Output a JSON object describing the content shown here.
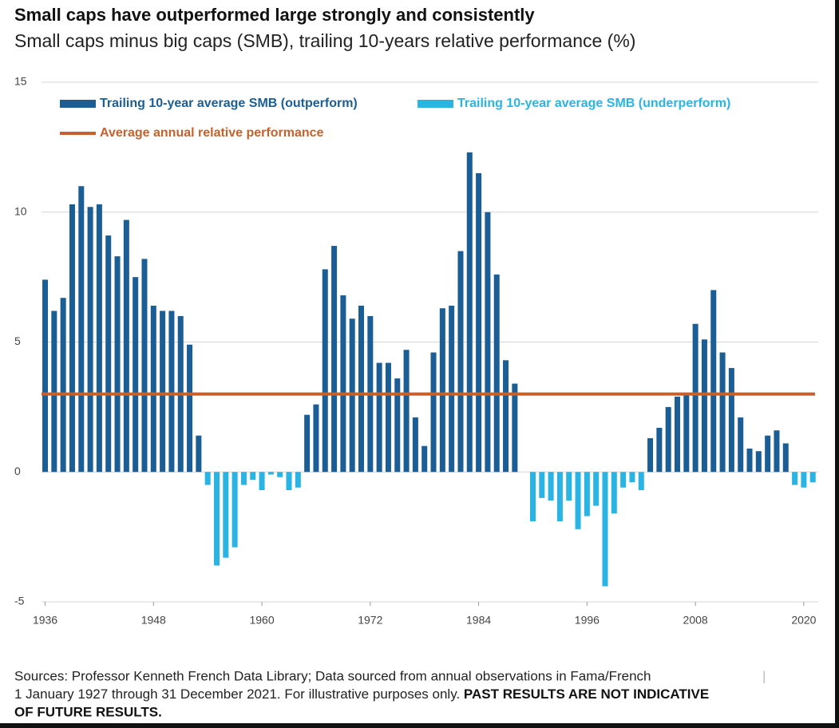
{
  "chart_data": {
    "type": "bar",
    "title": "Small caps have outperformed large strongly and consistently",
    "subtitle": "Small caps minus big caps (SMB), trailing 10-years relative performance (%)",
    "x": [
      1936,
      1937,
      1938,
      1939,
      1940,
      1941,
      1942,
      1943,
      1944,
      1945,
      1946,
      1947,
      1948,
      1949,
      1950,
      1951,
      1952,
      1953,
      1954,
      1955,
      1956,
      1957,
      1958,
      1959,
      1960,
      1961,
      1962,
      1963,
      1964,
      1965,
      1966,
      1967,
      1968,
      1969,
      1970,
      1971,
      1972,
      1973,
      1974,
      1975,
      1976,
      1977,
      1978,
      1979,
      1980,
      1981,
      1982,
      1983,
      1984,
      1985,
      1986,
      1987,
      1988,
      1989,
      1990,
      1991,
      1992,
      1993,
      1994,
      1995,
      1996,
      1997,
      1998,
      1999,
      2000,
      2001,
      2002,
      2003,
      2004,
      2005,
      2006,
      2007,
      2008,
      2009,
      2010,
      2011,
      2012,
      2013,
      2014,
      2015,
      2016,
      2017,
      2018,
      2019,
      2020,
      2021
    ],
    "series": [
      {
        "name": "Trailing 10-year average SMB (outperform)",
        "color": "#1b5e96",
        "values": [
          7.4,
          6.2,
          6.7,
          10.3,
          11.0,
          10.2,
          10.3,
          9.1,
          8.3,
          9.7,
          7.5,
          8.2,
          6.4,
          6.2,
          6.2,
          6.0,
          4.9,
          1.4,
          null,
          null,
          null,
          null,
          null,
          null,
          null,
          null,
          null,
          null,
          null,
          2.2,
          2.6,
          7.8,
          8.7,
          6.8,
          5.9,
          6.4,
          6.0,
          4.2,
          4.2,
          3.6,
          4.7,
          2.1,
          1.0,
          4.6,
          6.3,
          6.4,
          8.5,
          12.3,
          11.5,
          10.0,
          7.6,
          4.3,
          3.4,
          0,
          null,
          null,
          null,
          null,
          null,
          null,
          null,
          null,
          null,
          null,
          null,
          null,
          null,
          1.3,
          1.7,
          2.5,
          2.9,
          3.0,
          5.7,
          5.1,
          7.0,
          4.6,
          4.0,
          2.1,
          0.9,
          0.8,
          1.4,
          1.6,
          1.1,
          null,
          null,
          null
        ]
      },
      {
        "name": "Trailing 10-year average SMB (underperform)",
        "color": "#2ab4e3",
        "values": [
          null,
          null,
          null,
          null,
          null,
          null,
          null,
          null,
          null,
          null,
          null,
          null,
          null,
          null,
          null,
          null,
          null,
          null,
          -0.5,
          -3.6,
          -3.3,
          -2.9,
          -0.5,
          -0.3,
          -0.7,
          -0.1,
          -0.2,
          -0.7,
          -0.6,
          null,
          null,
          null,
          null,
          null,
          null,
          null,
          null,
          null,
          null,
          null,
          null,
          null,
          null,
          null,
          null,
          null,
          null,
          null,
          null,
          null,
          null,
          null,
          null,
          null,
          -1.9,
          -1.0,
          -1.1,
          -1.9,
          -1.1,
          -2.2,
          -1.7,
          -1.3,
          -4.4,
          -1.6,
          -0.6,
          -0.4,
          -0.7,
          null,
          null,
          null,
          null,
          null,
          null,
          null,
          null,
          null,
          null,
          null,
          null,
          null,
          null,
          null,
          null,
          -0.5,
          -0.6,
          -0.4
        ]
      }
    ],
    "average": {
      "name": "Average annual relative performance",
      "value": 3.0,
      "color": "#c4622d"
    },
    "xlim": [
      1935.6,
      2021.6
    ],
    "xticks": [
      1936,
      1948,
      1960,
      1972,
      1984,
      1996,
      2008,
      2020
    ],
    "ylim": [
      -5,
      15
    ],
    "yticks": [
      -5,
      0,
      5,
      10,
      15
    ],
    "grid": true,
    "footnote": {
      "line1": "Sources: Professor Kenneth French Data Library; Data sourced from annual observations in Fama/French",
      "separator": "|",
      "line2": "1 January 1927 through 31 December 2021. For illustrative purposes only.",
      "bold1": "PAST RESULTS ARE NOT INDICATIVE",
      "bold2": "OF FUTURE RESULTS."
    }
  }
}
